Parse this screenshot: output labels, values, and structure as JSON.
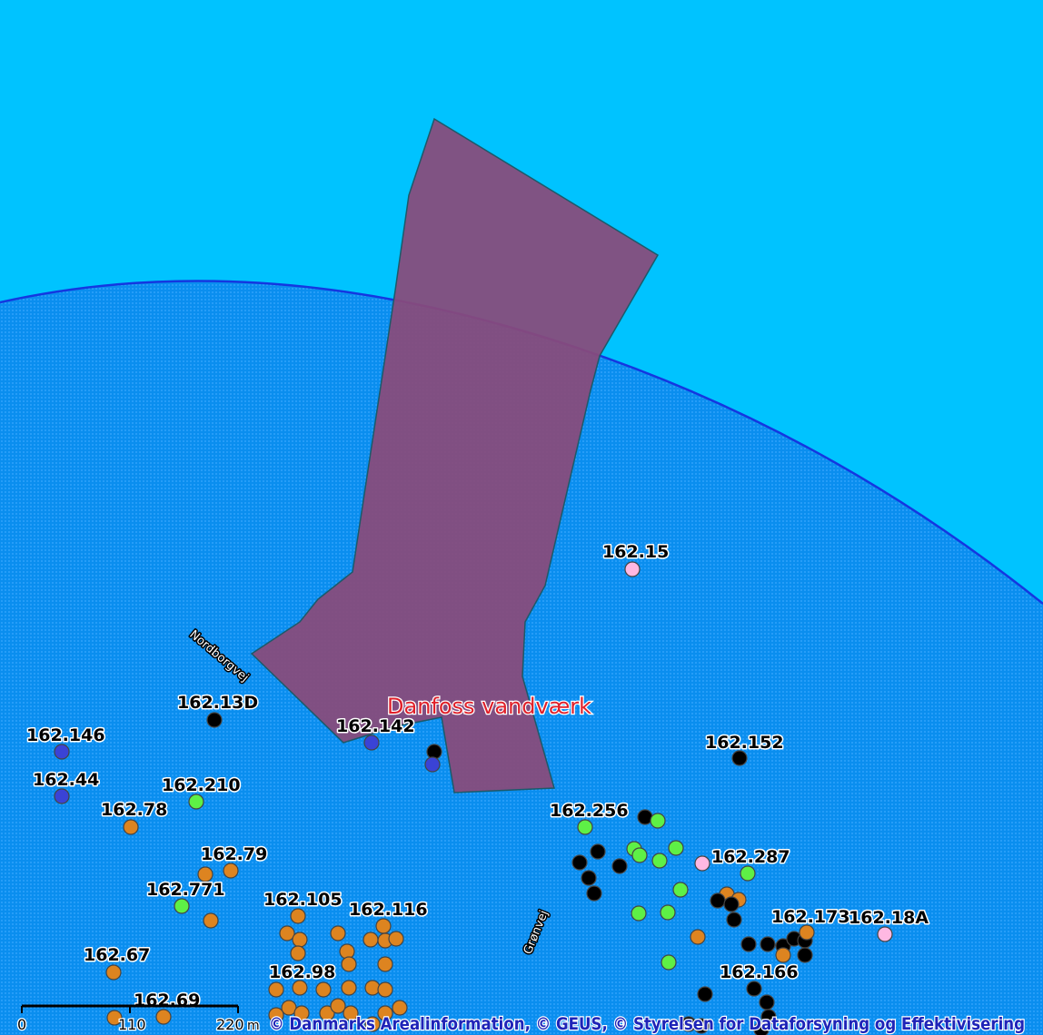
{
  "place_label": "Danfoss vandværk",
  "roads": [
    "Nordborgvej",
    "Grønvej"
  ],
  "scalebar": {
    "ticks": [
      "0",
      "110",
      "220"
    ],
    "unit": "m"
  },
  "attribution": "© Danmarks Arealinformation, © GEUS, © Styrelsen for Dataforsyning og Effektivisering",
  "colors": {
    "outside": "#00c3ff",
    "zone": "#0a8eef",
    "zone_border": "#1437e0",
    "area_fill": "#8a4a7a",
    "well_black": "#000000",
    "well_blue": "#3a43d6",
    "well_green": "#5ef046",
    "well_orange": "#dd8420",
    "well_pink": "#ffb8e2"
  },
  "well_labels": [
    "162.15",
    "162.13D",
    "162.142",
    "162.146",
    "162.152",
    "162.44",
    "162.210",
    "162.78",
    "162.256",
    "162.79",
    "162.287",
    "162.771",
    "162.105",
    "162.116",
    "162.173",
    "162.18A",
    "162.67",
    "162.98",
    "162.166",
    "162.69"
  ]
}
